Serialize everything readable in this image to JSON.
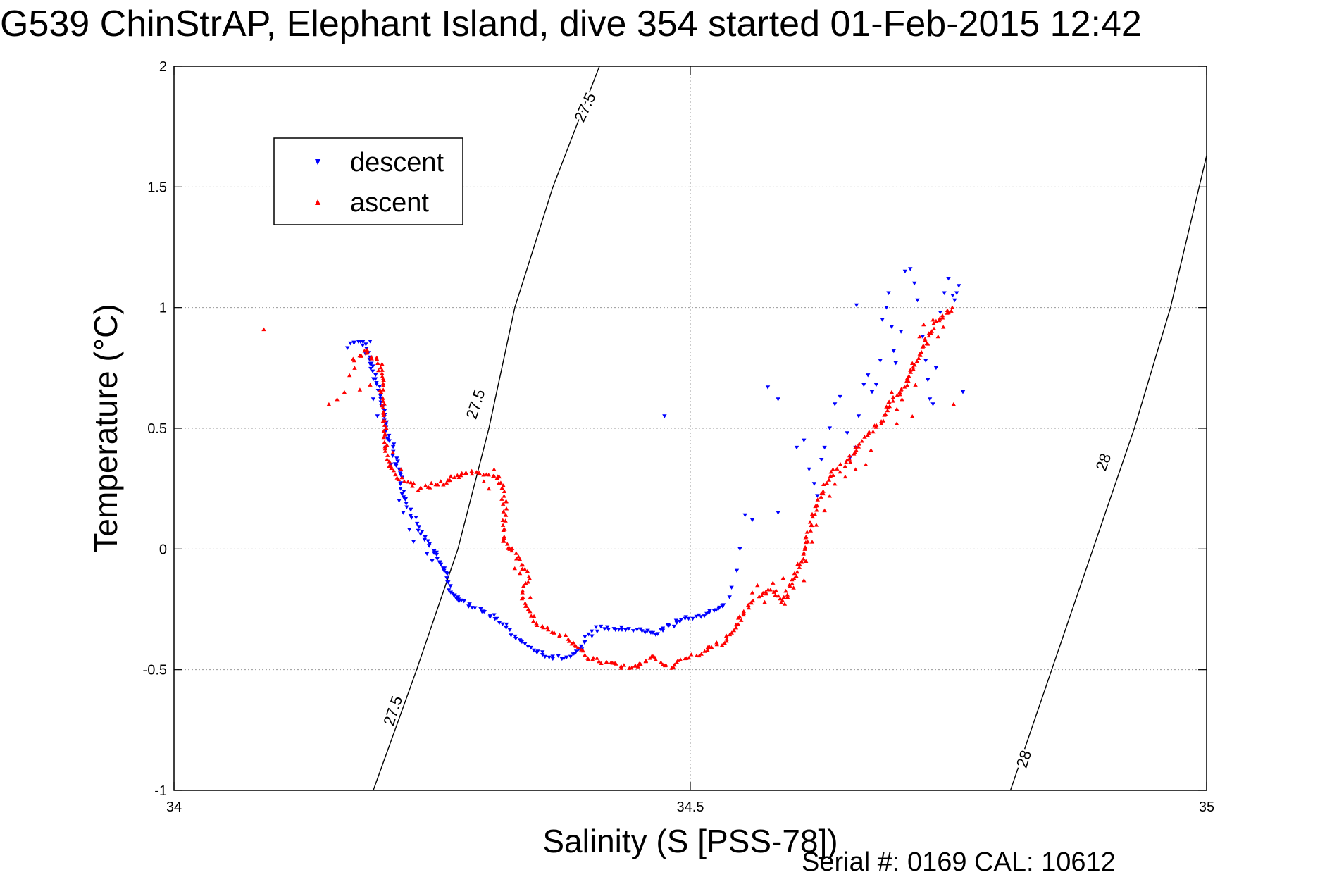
{
  "title": "G539 ChinStrAP, Elephant Island, dive 354 started 01-Feb-2015 12:42",
  "footer": "Serial #: 0169 CAL: 10612",
  "colors": {
    "descent": "#0000ff",
    "ascent": "#ff0000",
    "grid": "#9a9a9a",
    "contour": "#000000"
  },
  "chart_data": {
    "type": "scatter",
    "xlabel": "Salinity (S [PSS-78])",
    "ylabel": "Temperature (°C)",
    "xlim": [
      34,
      35
    ],
    "ylim": [
      -1,
      2
    ],
    "xticks": [
      34,
      34.5,
      35
    ],
    "xtick_labels": [
      "34",
      "34.5",
      "35"
    ],
    "yticks": [
      -1,
      -0.5,
      0,
      0.5,
      1,
      1.5,
      2
    ],
    "ytick_labels": [
      "-1",
      "-0.5",
      "0",
      "0.5",
      "1",
      "1.5",
      "2"
    ],
    "grid": true,
    "legend": {
      "placement": "top-left",
      "entries": [
        "descent",
        "ascent"
      ]
    },
    "contours": [
      {
        "label": "27.5",
        "points": [
          [
            34.193,
            -1.0
          ],
          [
            34.235,
            -0.5
          ],
          [
            34.275,
            0.0
          ],
          [
            34.305,
            0.5
          ],
          [
            34.33,
            1.0
          ],
          [
            34.367,
            1.5
          ],
          [
            34.412,
            2.0
          ]
        ]
      },
      {
        "label": "28",
        "points": [
          [
            34.81,
            -1.0
          ],
          [
            34.85,
            -0.5
          ],
          [
            34.89,
            0.0
          ],
          [
            34.93,
            0.5
          ],
          [
            34.965,
            1.0
          ],
          [
            35.0,
            1.63
          ]
        ]
      }
    ],
    "contour_labels": [
      {
        "text": "27.5",
        "x": 34.212,
        "y": -0.67,
        "angle": -72
      },
      {
        "text": "27.5",
        "x": 34.292,
        "y": 0.6,
        "angle": -72
      },
      {
        "text": "27.5",
        "x": 34.398,
        "y": 1.83,
        "angle": -65
      },
      {
        "text": "28",
        "x": 34.823,
        "y": -0.87,
        "angle": -72
      },
      {
        "text": "28",
        "x": 34.9,
        "y": 0.36,
        "angle": -70
      }
    ],
    "series": [
      {
        "name": "descent",
        "marker": "triangle-down",
        "path": [
          [
            34.17,
            0.84
          ],
          [
            34.175,
            0.86
          ],
          [
            34.18,
            0.86
          ],
          [
            34.185,
            0.84
          ],
          [
            34.195,
            0.7
          ],
          [
            34.2,
            0.63
          ],
          [
            34.205,
            0.5
          ],
          [
            34.21,
            0.44
          ],
          [
            34.215,
            0.37
          ],
          [
            34.22,
            0.28
          ],
          [
            34.225,
            0.2
          ],
          [
            34.235,
            0.1
          ],
          [
            34.24,
            0.06
          ],
          [
            34.25,
            0.0
          ],
          [
            34.255,
            -0.04
          ],
          [
            34.265,
            -0.12
          ],
          [
            34.27,
            -0.2
          ],
          [
            34.28,
            -0.22
          ],
          [
            34.29,
            -0.24
          ],
          [
            34.3,
            -0.26
          ],
          [
            34.31,
            -0.28
          ],
          [
            34.32,
            -0.32
          ],
          [
            34.335,
            -0.38
          ],
          [
            34.35,
            -0.42
          ],
          [
            34.365,
            -0.45
          ],
          [
            34.38,
            -0.45
          ],
          [
            34.39,
            -0.43
          ],
          [
            34.4,
            -0.37
          ],
          [
            34.41,
            -0.33
          ],
          [
            34.43,
            -0.33
          ],
          [
            34.45,
            -0.34
          ],
          [
            34.465,
            -0.35
          ],
          [
            34.475,
            -0.33
          ],
          [
            34.49,
            -0.3
          ],
          [
            34.505,
            -0.28
          ],
          [
            34.52,
            -0.26
          ],
          [
            34.53,
            -0.25
          ],
          [
            34.535,
            -0.22
          ]
        ],
        "scatter": [
          [
            34.19,
            0.86
          ],
          [
            34.193,
            0.62
          ],
          [
            34.197,
            0.55
          ],
          [
            34.205,
            0.42
          ],
          [
            34.21,
            0.35
          ],
          [
            34.218,
            0.2
          ],
          [
            34.222,
            0.15
          ],
          [
            34.228,
            0.08
          ],
          [
            34.232,
            0.03
          ],
          [
            34.245,
            -0.02
          ],
          [
            34.25,
            -0.05
          ],
          [
            34.262,
            -0.08
          ],
          [
            34.268,
            -0.18
          ],
          [
            34.275,
            -0.2
          ],
          [
            34.538,
            -0.2
          ],
          [
            34.54,
            -0.16
          ],
          [
            34.545,
            -0.09
          ],
          [
            34.548,
            0.0
          ],
          [
            34.553,
            0.14
          ],
          [
            34.56,
            0.12
          ],
          [
            34.475,
            0.55
          ],
          [
            34.585,
            0.15
          ],
          [
            34.603,
            0.42
          ],
          [
            34.61,
            0.45
          ],
          [
            34.615,
            0.33
          ],
          [
            34.62,
            0.27
          ],
          [
            34.623,
            0.22
          ],
          [
            34.627,
            0.37
          ],
          [
            34.63,
            0.42
          ],
          [
            34.635,
            0.5
          ],
          [
            34.64,
            0.6
          ],
          [
            34.645,
            0.63
          ],
          [
            34.652,
            0.48
          ],
          [
            34.655,
            0.38
          ],
          [
            34.66,
            0.42
          ],
          [
            34.663,
            0.55
          ],
          [
            34.668,
            0.68
          ],
          [
            34.672,
            0.72
          ],
          [
            34.676,
            0.65
          ],
          [
            34.68,
            0.68
          ],
          [
            34.684,
            0.78
          ],
          [
            34.686,
            0.95
          ],
          [
            34.69,
            1.0
          ],
          [
            34.692,
            1.06
          ],
          [
            34.695,
            0.92
          ],
          [
            34.697,
            0.82
          ],
          [
            34.699,
            0.77
          ],
          [
            34.704,
            0.9
          ],
          [
            34.708,
            1.15
          ],
          [
            34.713,
            1.16
          ],
          [
            34.717,
            1.1
          ],
          [
            34.72,
            1.03
          ],
          [
            34.725,
            0.88
          ],
          [
            34.728,
            0.78
          ],
          [
            34.73,
            0.7
          ],
          [
            34.732,
            0.62
          ],
          [
            34.735,
            0.6
          ],
          [
            34.738,
            0.75
          ],
          [
            34.742,
            0.98
          ],
          [
            34.746,
            1.06
          ],
          [
            34.75,
            1.12
          ],
          [
            34.754,
            1.05
          ],
          [
            34.756,
            1.03
          ],
          [
            34.758,
            1.06
          ],
          [
            34.76,
            1.09
          ],
          [
            34.764,
            0.65
          ],
          [
            34.661,
            1.01
          ],
          [
            34.575,
            0.67
          ],
          [
            34.585,
            0.62
          ]
        ]
      },
      {
        "name": "ascent",
        "marker": "triangle-up",
        "path": [
          [
            34.175,
            0.78
          ],
          [
            34.18,
            0.8
          ],
          [
            34.185,
            0.82
          ],
          [
            34.19,
            0.8
          ],
          [
            34.195,
            0.79
          ],
          [
            34.2,
            0.77
          ],
          [
            34.205,
            0.41
          ],
          [
            34.21,
            0.35
          ],
          [
            34.215,
            0.3
          ],
          [
            34.225,
            0.28
          ],
          [
            34.235,
            0.25
          ],
          [
            34.245,
            0.26
          ],
          [
            34.255,
            0.27
          ],
          [
            34.265,
            0.28
          ],
          [
            34.27,
            0.3
          ],
          [
            34.28,
            0.31
          ],
          [
            34.29,
            0.32
          ],
          [
            34.3,
            0.31
          ],
          [
            34.31,
            0.31
          ],
          [
            34.315,
            0.29
          ],
          [
            34.318,
            0.27
          ],
          [
            34.32,
            0.19
          ],
          [
            34.32,
            0.11
          ],
          [
            34.318,
            0.06
          ],
          [
            34.322,
            0.02
          ],
          [
            34.33,
            -0.02
          ],
          [
            34.338,
            -0.07
          ],
          [
            34.343,
            -0.12
          ],
          [
            34.34,
            -0.16
          ],
          [
            34.338,
            -0.21
          ],
          [
            34.343,
            -0.25
          ],
          [
            34.35,
            -0.3
          ],
          [
            34.36,
            -0.33
          ],
          [
            34.37,
            -0.35
          ],
          [
            34.385,
            -0.38
          ],
          [
            34.395,
            -0.42
          ],
          [
            34.4,
            -0.45
          ],
          [
            34.41,
            -0.46
          ],
          [
            34.42,
            -0.47
          ],
          [
            34.43,
            -0.48
          ],
          [
            34.44,
            -0.49
          ],
          [
            34.45,
            -0.49
          ],
          [
            34.455,
            -0.47
          ],
          [
            34.462,
            -0.44
          ],
          [
            34.468,
            -0.46
          ],
          [
            34.475,
            -0.48
          ],
          [
            34.48,
            -0.49
          ],
          [
            34.49,
            -0.46
          ],
          [
            34.5,
            -0.45
          ],
          [
            34.51,
            -0.43
          ],
          [
            34.52,
            -0.41
          ],
          [
            34.53,
            -0.39
          ],
          [
            34.535,
            -0.37
          ],
          [
            34.545,
            -0.32
          ],
          [
            34.552,
            -0.26
          ],
          [
            34.56,
            -0.22
          ],
          [
            34.57,
            -0.19
          ],
          [
            34.578,
            -0.16
          ],
          [
            34.585,
            -0.2
          ],
          [
            34.59,
            -0.23
          ],
          [
            34.595,
            -0.16
          ],
          [
            34.6,
            -0.12
          ],
          [
            34.605,
            -0.08
          ],
          [
            34.61,
            0.0
          ],
          [
            34.615,
            0.08
          ],
          [
            34.62,
            0.14
          ],
          [
            34.625,
            0.2
          ],
          [
            34.63,
            0.26
          ],
          [
            34.635,
            0.3
          ],
          [
            34.64,
            0.33
          ],
          [
            34.648,
            0.35
          ],
          [
            34.655,
            0.39
          ],
          [
            34.665,
            0.44
          ],
          [
            34.675,
            0.48
          ],
          [
            34.682,
            0.52
          ],
          [
            34.688,
            0.56
          ],
          [
            34.692,
            0.6
          ],
          [
            34.697,
            0.63
          ],
          [
            34.703,
            0.65
          ],
          [
            34.708,
            0.67
          ],
          [
            34.712,
            0.72
          ],
          [
            34.716,
            0.75
          ],
          [
            34.72,
            0.78
          ],
          [
            34.724,
            0.82
          ],
          [
            34.728,
            0.86
          ],
          [
            34.732,
            0.9
          ],
          [
            34.736,
            0.93
          ],
          [
            34.742,
            0.96
          ],
          [
            34.748,
            0.98
          ],
          [
            34.755,
            1.01
          ]
        ],
        "scatter": [
          [
            34.087,
            0.91
          ],
          [
            34.15,
            0.6
          ],
          [
            34.158,
            0.62
          ],
          [
            34.165,
            0.65
          ],
          [
            34.17,
            0.72
          ],
          [
            34.175,
            0.75
          ],
          [
            34.18,
            0.66
          ],
          [
            34.19,
            0.68
          ],
          [
            34.198,
            0.74
          ],
          [
            34.203,
            0.7
          ],
          [
            34.212,
            0.4
          ],
          [
            34.22,
            0.33
          ],
          [
            34.3,
            0.28
          ],
          [
            34.305,
            0.25
          ],
          [
            34.31,
            0.33
          ],
          [
            34.315,
            0.3
          ],
          [
            34.325,
            0.0
          ],
          [
            34.33,
            -0.08
          ],
          [
            34.335,
            -0.1
          ],
          [
            34.345,
            -0.2
          ],
          [
            34.56,
            -0.18
          ],
          [
            34.565,
            -0.15
          ],
          [
            34.572,
            -0.22
          ],
          [
            34.58,
            -0.14
          ],
          [
            34.59,
            -0.12
          ],
          [
            34.6,
            -0.16
          ],
          [
            34.61,
            -0.13
          ],
          [
            34.612,
            -0.05
          ],
          [
            34.618,
            0.03
          ],
          [
            34.622,
            0.1
          ],
          [
            34.63,
            0.16
          ],
          [
            34.635,
            0.22
          ],
          [
            34.64,
            0.27
          ],
          [
            34.645,
            0.32
          ],
          [
            34.65,
            0.3
          ],
          [
            34.655,
            0.36
          ],
          [
            34.66,
            0.33
          ],
          [
            34.67,
            0.35
          ],
          [
            34.675,
            0.41
          ],
          [
            34.685,
            0.52
          ],
          [
            34.69,
            0.59
          ],
          [
            34.695,
            0.65
          ],
          [
            34.7,
            0.58
          ],
          [
            34.705,
            0.62
          ],
          [
            34.71,
            0.7
          ],
          [
            34.715,
            0.77
          ],
          [
            34.718,
            0.68
          ],
          [
            34.722,
            0.88
          ],
          [
            34.726,
            0.93
          ],
          [
            34.73,
            0.85
          ],
          [
            34.735,
            0.95
          ],
          [
            34.74,
            0.88
          ],
          [
            34.745,
            0.92
          ],
          [
            34.75,
            0.98
          ],
          [
            34.755,
            0.6
          ],
          [
            34.715,
            0.55
          ],
          [
            34.7,
            0.52
          ]
        ]
      }
    ]
  }
}
